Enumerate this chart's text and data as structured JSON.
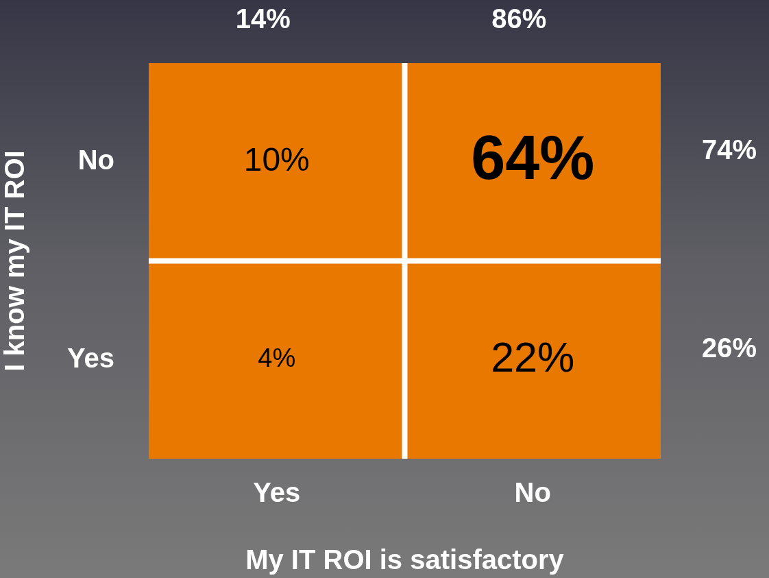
{
  "chart_data": {
    "type": "heatmap",
    "xlabel": "My IT ROI is satisfactory",
    "ylabel": "I know my IT ROI",
    "categories": [
      "Yes",
      "No"
    ],
    "y_categories": [
      "No",
      "Yes"
    ],
    "y2_categories": [
      "74%",
      "26%"
    ],
    "cells": [
      [
        10,
        64
      ],
      [
        4,
        22
      ]
    ],
    "cell_labels": [
      [
        "10%",
        "64%"
      ],
      [
        "4%",
        "22%"
      ]
    ],
    "color": "#e87800",
    "annotations": [
      "14%",
      "86%"
    ]
  }
}
